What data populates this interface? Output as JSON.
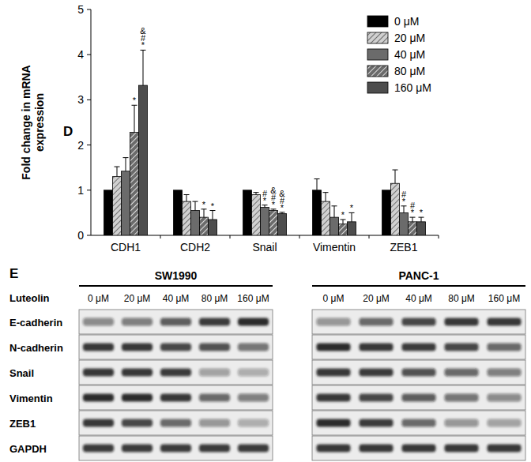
{
  "chart_data": {
    "type": "bar",
    "title": "D",
    "y_label": "Fold change in mRNA expression",
    "categories": [
      "CDH1",
      "CDH2",
      "Snail",
      "Vimentin",
      "ZEB1"
    ],
    "ylim": [
      0,
      5
    ],
    "yticks": [
      0,
      1,
      2,
      3,
      4,
      5
    ],
    "legend": "top-right",
    "grid": false,
    "series": [
      {
        "name": "0 μM",
        "color": "#000000",
        "values": [
          1.0,
          1.0,
          1.0,
          1.0,
          1.0
        ],
        "error": [
          0,
          0,
          0,
          0.25,
          0
        ],
        "annotations": [
          null,
          null,
          null,
          null,
          null
        ]
      },
      {
        "name": "20 μM",
        "color": "#d0d0d0",
        "values": [
          1.3,
          0.75,
          0.9,
          0.75,
          1.15
        ],
        "error": [
          0.22,
          0.15,
          0.05,
          0.2,
          0.3
        ],
        "annotations": [
          null,
          null,
          null,
          null,
          null
        ]
      },
      {
        "name": "40 μM",
        "color": "#6b6b6b",
        "values": [
          1.42,
          0.55,
          0.62,
          0.4,
          0.5
        ],
        "error": [
          0.3,
          0.2,
          0.05,
          0.25,
          0.15
        ],
        "annotations": [
          null,
          null,
          [
            "*",
            "#"
          ],
          null,
          [
            "*",
            "#"
          ]
        ]
      },
      {
        "name": "80 μM",
        "color": "#6b6b6b",
        "values": [
          2.28,
          0.4,
          0.55,
          0.25,
          0.3
        ],
        "error": [
          0.6,
          0.18,
          0.03,
          0.1,
          0.1
        ],
        "annotations": [
          [
            "*"
          ],
          [
            "*"
          ],
          [
            "*",
            "#",
            "&"
          ],
          [
            "*"
          ],
          [
            "*",
            "#"
          ]
        ]
      },
      {
        "name": "160 μM",
        "color": "#4d4d4d",
        "values": [
          3.32,
          0.35,
          0.48,
          0.3,
          0.3
        ],
        "error": [
          0.78,
          0.2,
          0.03,
          0.2,
          0.1
        ],
        "annotations": [
          [
            "*",
            "#",
            "&"
          ],
          [
            "*"
          ],
          [
            "*",
            "#",
            "&"
          ],
          [
            "*"
          ],
          [
            "*"
          ]
        ]
      }
    ]
  },
  "blot": {
    "panel_label": "E",
    "treatment_label": "Luteolin",
    "lanes": [
      "0 μM",
      "20 μM",
      "40 μM",
      "80 μM",
      "160 μM"
    ],
    "proteins": [
      "E-cadherin",
      "N-cadherin",
      "Snail",
      "Vimentin",
      "ZEB1",
      "GAPDH"
    ],
    "cell_lines": [
      {
        "name": "SW1990",
        "band_intensity": [
          [
            0.45,
            0.5,
            0.65,
            0.8,
            0.9
          ],
          [
            0.85,
            0.85,
            0.75,
            0.7,
            0.55
          ],
          [
            0.85,
            0.85,
            0.8,
            0.35,
            0.3
          ],
          [
            0.9,
            0.9,
            0.85,
            0.6,
            0.5
          ],
          [
            0.85,
            0.75,
            0.6,
            0.4,
            0.3
          ],
          [
            0.8,
            0.8,
            0.8,
            0.8,
            0.8
          ]
        ]
      },
      {
        "name": "PANC-1",
        "band_intensity": [
          [
            0.4,
            0.6,
            0.75,
            0.85,
            0.85
          ],
          [
            0.9,
            0.85,
            0.8,
            0.75,
            0.6
          ],
          [
            0.85,
            0.8,
            0.7,
            0.6,
            0.5
          ],
          [
            0.85,
            0.75,
            0.65,
            0.55,
            0.45
          ],
          [
            0.9,
            0.8,
            0.6,
            0.4,
            0.35
          ],
          [
            0.85,
            0.85,
            0.85,
            0.85,
            0.85
          ]
        ]
      }
    ]
  }
}
